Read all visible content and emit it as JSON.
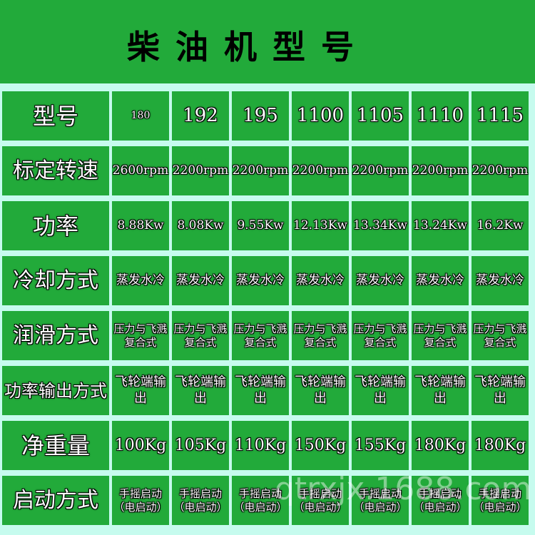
{
  "title": "柴油机型号",
  "watermark": "qtrxjx.1688.com",
  "colors": {
    "cell_green": "#22aa3a",
    "grid_line": "#c6fbee"
  },
  "rows": [
    {
      "label": "型号",
      "values": [
        "180",
        "192",
        "195",
        "1100",
        "1105",
        "1110",
        "1115"
      ]
    },
    {
      "label": "标定转速",
      "values": [
        "2600rpm",
        "2200rpm",
        "2200rpm",
        "2200rpm",
        "2200rpm",
        "2200rpm",
        "2200rpm"
      ]
    },
    {
      "label": "功率",
      "values": [
        "8.88Kw",
        "8.08Kw",
        "9.55Kw",
        "12.13Kw",
        "13.34Kw",
        "13.24Kw",
        "16.2Kw"
      ]
    },
    {
      "label": "冷却方式",
      "values": [
        "蒸发水冷",
        "蒸发水冷",
        "蒸发水冷",
        "蒸发水冷",
        "蒸发水冷",
        "蒸发水冷",
        "蒸发水冷"
      ]
    },
    {
      "label": "润滑方式",
      "values": [
        "压力与飞溅复合式",
        "压力与飞溅复合式",
        "压力与飞溅复合式",
        "压力与飞溅复合式",
        "压力与飞溅复合式",
        "压力与飞溅复合式",
        "压力与飞溅复合式"
      ]
    },
    {
      "label": "功率输出方式",
      "values": [
        "飞轮端输出",
        "飞轮端输出",
        "飞轮端输出",
        "飞轮端输出",
        "飞轮端输出",
        "飞轮端输出",
        "飞轮端输出"
      ]
    },
    {
      "label": "净重量",
      "values": [
        "100Kg",
        "105Kg",
        "110Kg",
        "150Kg",
        "155Kg",
        "180Kg",
        "180Kg"
      ]
    },
    {
      "label": "启动方式",
      "values": [
        "手摇启动（电启动）",
        "手摇启动（电启动）",
        "手摇启动（电启动）",
        "手摇启动（电启动）",
        "手摇启动（电启动）",
        "手摇启动（电启动）",
        "手摇启动（电启动）"
      ]
    }
  ]
}
